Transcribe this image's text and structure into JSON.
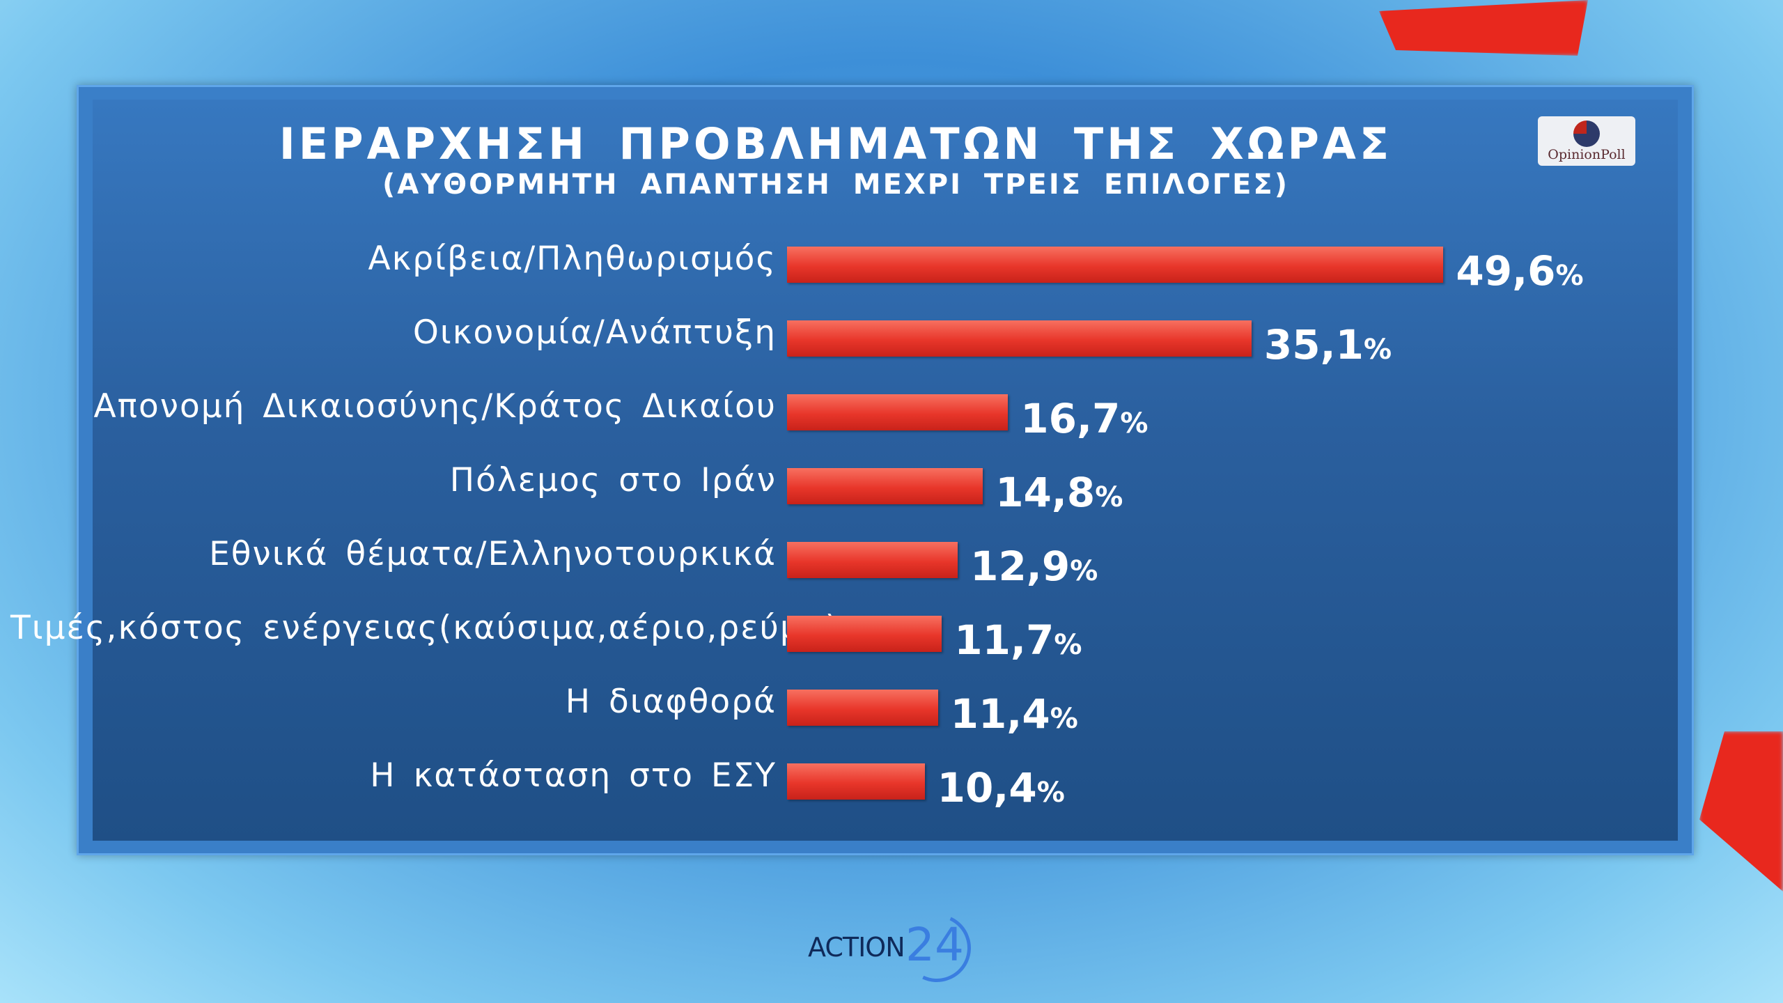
{
  "chart_data": {
    "type": "bar",
    "orientation": "horizontal",
    "title": "ΙΕΡΑΡΧΗΣΗ ΠΡΟΒΛΗΜΑΤΩΝ ΤΗΣ ΧΩΡΑΣ",
    "subtitle": "(ΑΥΘΟΡΜΗΤΗ ΑΠΑΝΤΗΣΗ ΜΕΧΡΙ ΤΡΕΙΣ ΕΠΙΛΟΓΕΣ)",
    "categories": [
      "Ακρίβεια/Πληθωρισμός",
      "Οικονομία/Ανάπτυξη",
      "Απονομή Δικαιοσύνης/Κράτος Δικαίου",
      "Πόλεμος στο Ιράν",
      "Εθνικά θέματα/Ελληνοτουρκικά",
      "Τιμές,κόστος ενέργειας(καύσιμα,αέριο,ρεύμα)",
      "Η διαφθορά",
      "Η κατάσταση στο ΕΣΥ"
    ],
    "values": [
      49.6,
      35.1,
      16.7,
      14.8,
      12.9,
      11.7,
      11.4,
      10.4
    ],
    "value_labels": [
      "49,6",
      "35,1",
      "16,7",
      "14,8",
      "12,9",
      "11,7",
      "11,4",
      "10,4"
    ],
    "unit": "%",
    "bar_color": "#e8362a",
    "grid": false
  },
  "logos": {
    "pollster": "OpinionPoll",
    "channel_text": "ACTION",
    "channel_num": "24"
  }
}
